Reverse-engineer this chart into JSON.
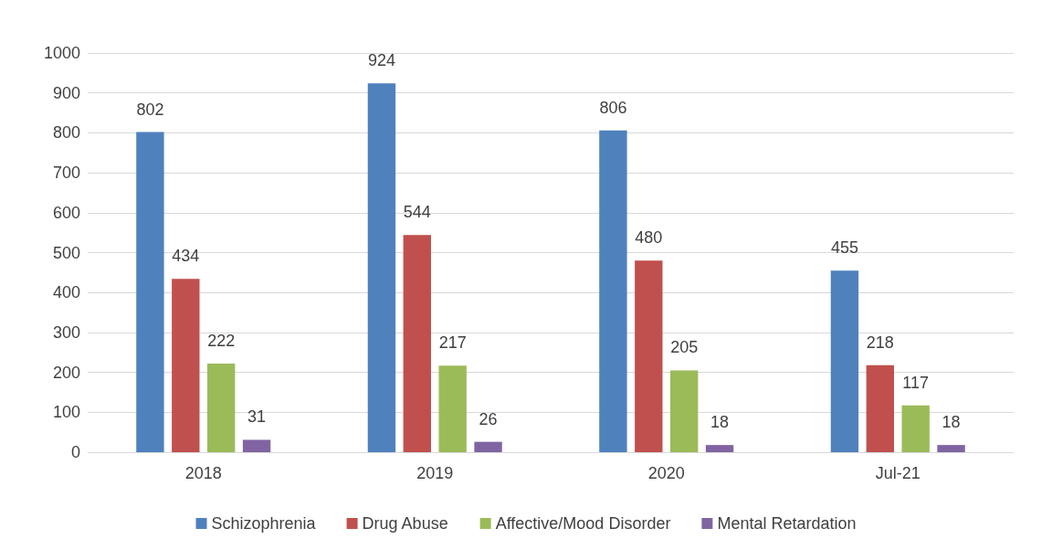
{
  "chart_data": {
    "type": "bar",
    "categories": [
      "2018",
      "2019",
      "2020",
      "Jul-21"
    ],
    "series": [
      {
        "name": "Schizophrenia",
        "color": "#4f81bd",
        "values": [
          802,
          924,
          806,
          455
        ]
      },
      {
        "name": "Drug Abuse",
        "color": "#c0504d",
        "values": [
          434,
          544,
          480,
          218
        ]
      },
      {
        "name": "Affective/Mood Disorder",
        "color": "#9bbb59",
        "values": [
          222,
          217,
          205,
          117
        ]
      },
      {
        "name": "Mental Retardation",
        "color": "#8064a2",
        "values": [
          31,
          26,
          18,
          18
        ]
      }
    ],
    "ylim": [
      0,
      1000
    ],
    "yticks": [
      0,
      100,
      200,
      300,
      400,
      500,
      600,
      700,
      800,
      900,
      1000
    ],
    "grid": "y",
    "legend": "bottom",
    "data_labels": true
  }
}
